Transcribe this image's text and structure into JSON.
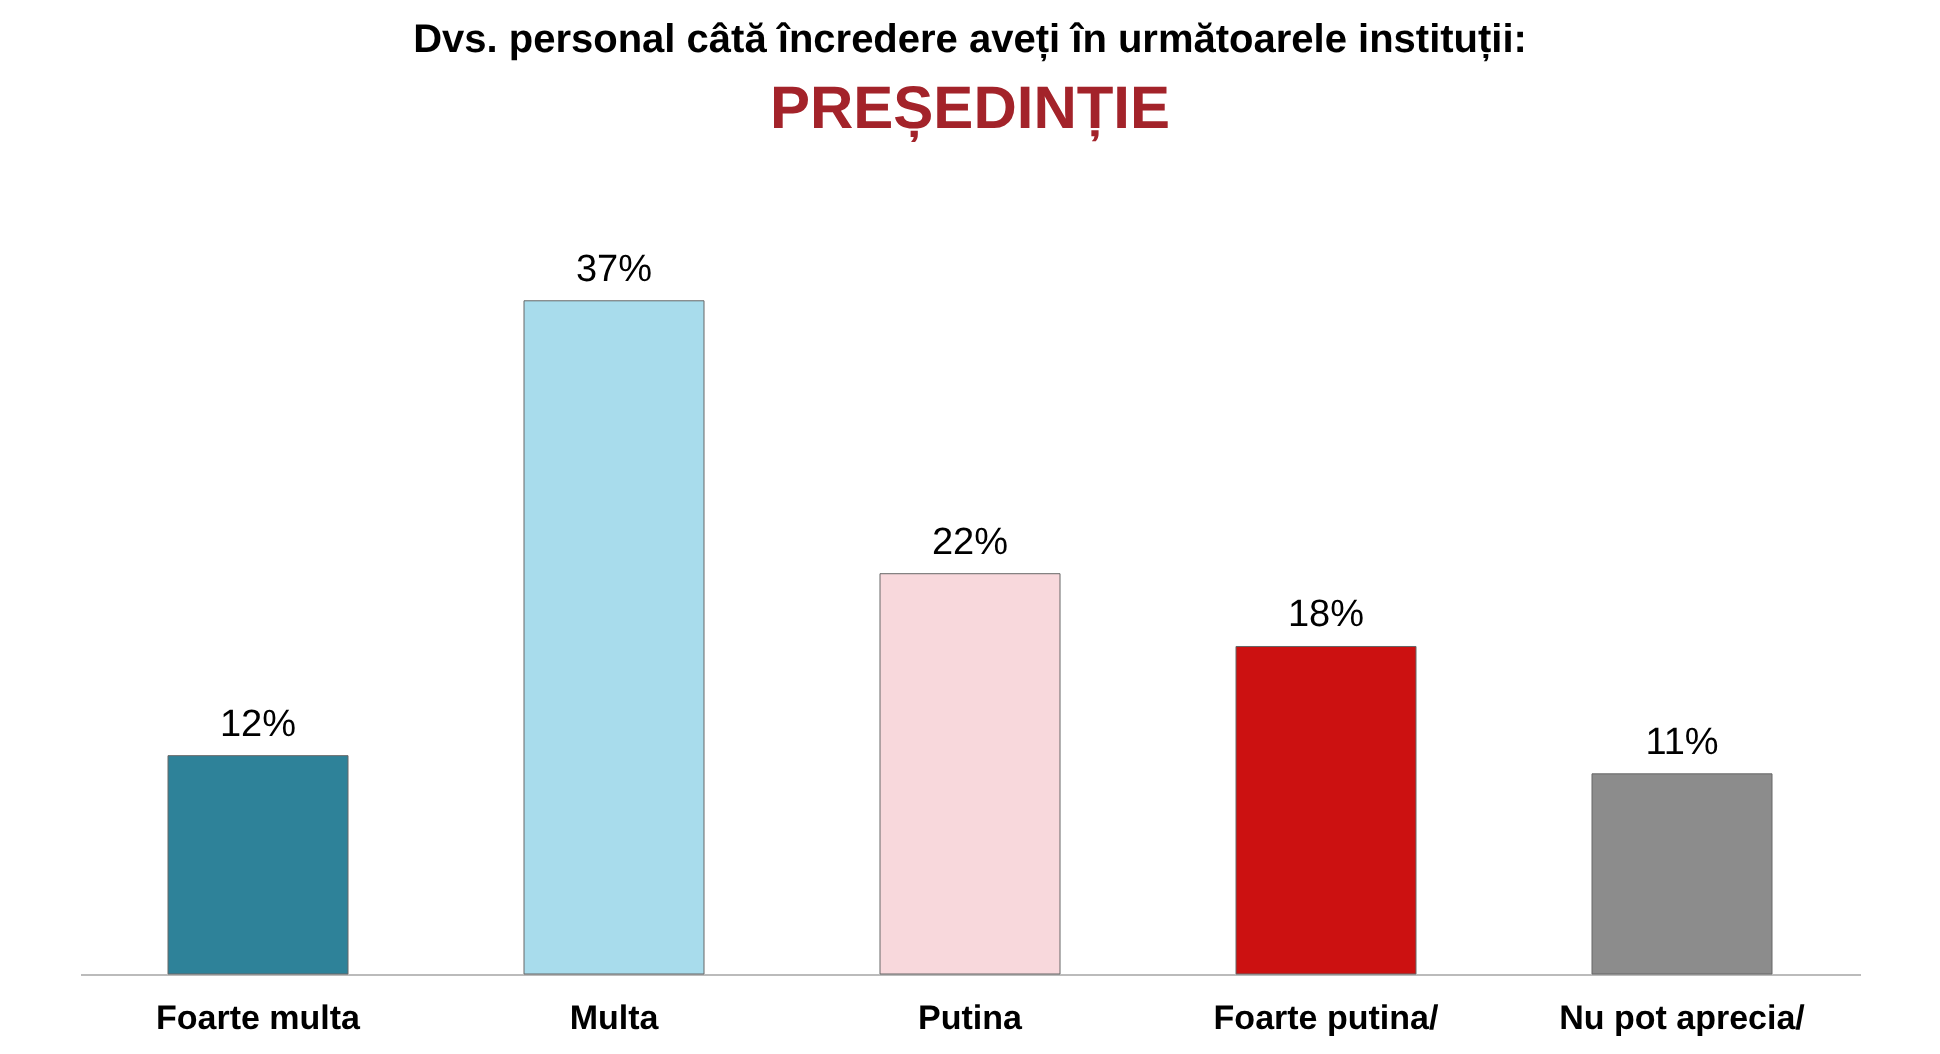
{
  "chart_data": {
    "type": "bar",
    "title": "Dvs. personal câtă încredere aveți în următoarele instituții:",
    "subtitle": "PREȘEDINȚIE",
    "categories": [
      "Foarte multa",
      "Multa",
      "Putina",
      "Foarte putina/",
      "Nu pot aprecia/"
    ],
    "values": [
      12,
      37,
      22,
      18,
      11
    ],
    "colors": [
      "#2e8299",
      "#a8dcec",
      "#f8d8dc",
      "#cc1111",
      "#8c8c8c"
    ],
    "value_labels": [
      "12%",
      "37%",
      "22%",
      "18%",
      "11%"
    ],
    "data_labels": true,
    "grid": false
  }
}
